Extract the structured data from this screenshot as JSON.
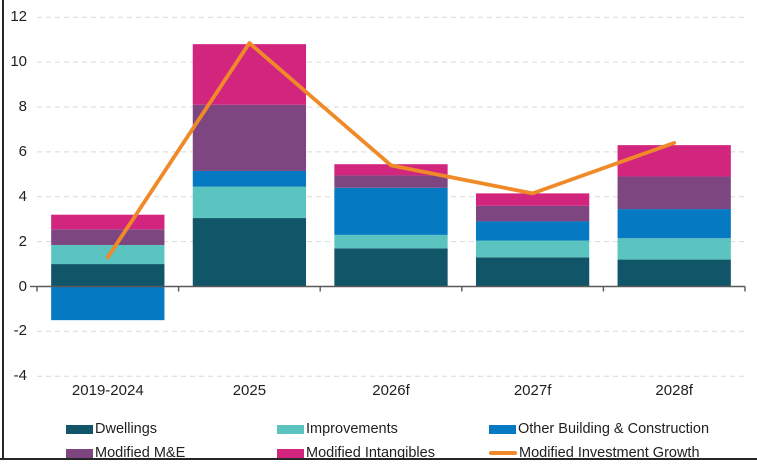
{
  "chart_data": {
    "type": "bar",
    "subtype": "stacked-column-with-line-overlay",
    "categories": [
      "2019-2024",
      "2025",
      "2026f",
      "2027f",
      "2028f"
    ],
    "series": [
      {
        "name": "Dwellings",
        "type": "bar",
        "color": "#115569",
        "values": [
          1.0,
          3.05,
          1.7,
          1.3,
          1.2
        ]
      },
      {
        "name": "Improvements",
        "type": "bar",
        "color": "#5cc4c0",
        "values": [
          0.85,
          1.4,
          0.6,
          0.75,
          0.95
        ]
      },
      {
        "name": "Other Building & Construction",
        "type": "bar",
        "color": "#0679c3",
        "values": [
          -1.5,
          0.7,
          2.1,
          0.85,
          1.3
        ]
      },
      {
        "name": "Modified M&E",
        "type": "bar",
        "color": "#7d4681",
        "values": [
          0.7,
          2.95,
          0.55,
          0.7,
          1.45
        ]
      },
      {
        "name": "Modified Intangibles",
        "type": "bar",
        "color": "#d2267e",
        "values": [
          0.65,
          2.7,
          0.5,
          0.55,
          1.4
        ]
      },
      {
        "name": "Modified Investment Growth",
        "type": "line",
        "color": "#f08a28",
        "values": [
          1.3,
          10.85,
          5.4,
          4.15,
          6.4
        ]
      }
    ],
    "ylim": [
      -4,
      12
    ],
    "yticks": [
      12,
      10,
      8,
      6,
      4,
      2,
      0,
      -2,
      -4
    ],
    "grid": "horizontal-dashed",
    "legend_position": "bottom",
    "legend_columns": 3,
    "title": "",
    "xlabel": "",
    "ylabel": ""
  },
  "style": {
    "background": "#ffffff",
    "gridline_color": "#d9d9d9",
    "axis_line_color": "#595959",
    "text_color": "#1f1f1f",
    "frame_border_color": "#262626"
  }
}
